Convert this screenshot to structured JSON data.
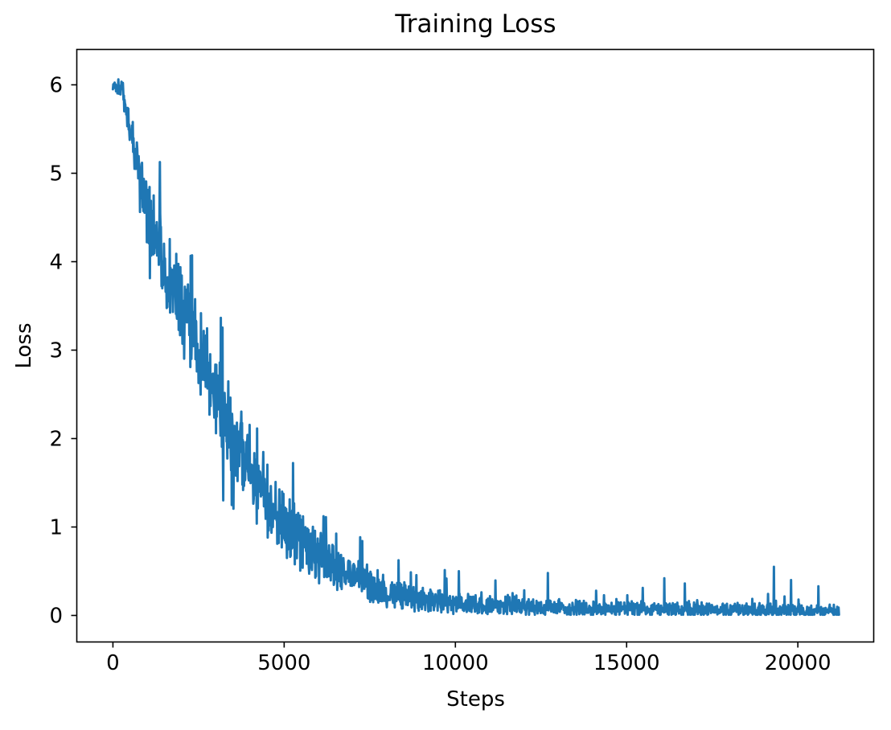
{
  "colors": {
    "line": "#1f77b4",
    "axes": "#000000",
    "text": "#000000",
    "background": "#ffffff"
  },
  "chart_data": {
    "type": "line",
    "title": "Training Loss",
    "xlabel": "Steps",
    "ylabel": "Loss",
    "grid": false,
    "legend": "none",
    "xlim": [
      -1055,
      22215
    ],
    "ylim": [
      -0.3,
      6.4
    ],
    "xticks": {
      "values": [
        0,
        5000,
        10000,
        15000,
        20000
      ],
      "labels": [
        "0",
        "5000",
        "10000",
        "15000",
        "20000"
      ]
    },
    "yticks": {
      "values": [
        0,
        1,
        2,
        3,
        4,
        5,
        6
      ],
      "labels": [
        "0",
        "1",
        "2",
        "3",
        "4",
        "5",
        "6"
      ]
    },
    "series": [
      {
        "name": "training_loss",
        "color": "#1f77b4",
        "step_start": 0,
        "step_end": 21200,
        "step_interval": 10,
        "description": "Noisy training loss decaying from ~6.0 at step 0 to ~0.05 after ~10000 steps, with occasional upward spikes in the flat tail.",
        "trend_keypoints": [
          [
            0,
            6.0
          ],
          [
            250,
            5.97
          ],
          [
            500,
            5.5
          ],
          [
            700,
            5.1
          ],
          [
            1000,
            4.55
          ],
          [
            1500,
            4.0
          ],
          [
            2000,
            3.5
          ],
          [
            2500,
            3.0
          ],
          [
            3000,
            2.5
          ],
          [
            3500,
            2.05
          ],
          [
            4000,
            1.65
          ],
          [
            4500,
            1.32
          ],
          [
            5000,
            1.05
          ],
          [
            5500,
            0.85
          ],
          [
            6000,
            0.68
          ],
          [
            6500,
            0.55
          ],
          [
            7000,
            0.44
          ],
          [
            7500,
            0.35
          ],
          [
            8000,
            0.28
          ],
          [
            8500,
            0.23
          ],
          [
            9000,
            0.19
          ],
          [
            9500,
            0.16
          ],
          [
            10000,
            0.14
          ],
          [
            11000,
            0.11
          ],
          [
            12000,
            0.1
          ],
          [
            13000,
            0.09
          ],
          [
            14000,
            0.08
          ],
          [
            15000,
            0.075
          ],
          [
            16000,
            0.07
          ],
          [
            17000,
            0.065
          ],
          [
            18000,
            0.06
          ],
          [
            19000,
            0.06
          ],
          [
            20000,
            0.055
          ],
          [
            21200,
            0.05
          ]
        ],
        "noise_amplitude_keypoints": [
          [
            0,
            0.07
          ],
          [
            300,
            0.1
          ],
          [
            700,
            0.28
          ],
          [
            1000,
            0.38
          ],
          [
            1500,
            0.45
          ],
          [
            2500,
            0.5
          ],
          [
            3500,
            0.48
          ],
          [
            4500,
            0.42
          ],
          [
            5500,
            0.34
          ],
          [
            6500,
            0.27
          ],
          [
            7500,
            0.2
          ],
          [
            8500,
            0.16
          ],
          [
            9500,
            0.13
          ],
          [
            11000,
            0.11
          ],
          [
            13000,
            0.09
          ],
          [
            15000,
            0.085
          ],
          [
            18000,
            0.08
          ],
          [
            21200,
            0.08
          ]
        ],
        "notable_spikes": [
          [
            10100,
            0.5
          ],
          [
            12700,
            0.48
          ],
          [
            16100,
            0.42
          ],
          [
            19300,
            0.55
          ],
          [
            19800,
            0.4
          ],
          [
            20600,
            0.33
          ]
        ],
        "start_value": 6.0,
        "max_value": 6.1,
        "final_value": 0.05
      }
    ]
  }
}
